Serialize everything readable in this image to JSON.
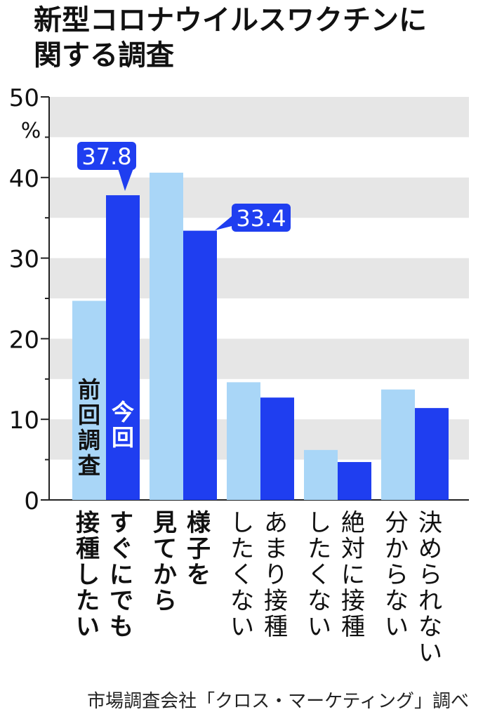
{
  "title_line1": "新型コロナウイルスワクチンに",
  "title_line2": "関する調査",
  "source": "市場調査会社「クロス・マーケティング」調べ",
  "colors": {
    "previous": "#a9d6f7",
    "current": "#1f3ef0",
    "band": "#e6e6e6",
    "axis": "#222222",
    "text": "#111111"
  },
  "chart_data": {
    "type": "bar",
    "y_unit": "%",
    "ylim": [
      0,
      50
    ],
    "y_ticks": [
      0,
      10,
      20,
      30,
      40,
      50
    ],
    "categories": [
      "すぐにでも接種したい",
      "様子を見てから",
      "あまり接種したくない",
      "絶対に接種したくない",
      "決められない分からない"
    ],
    "category_label_columns": [
      [
        "すぐにでも",
        "接種したい"
      ],
      [
        "様子を",
        "見てから"
      ],
      [
        "あまり接種",
        "したくない"
      ],
      [
        "絶対に接種",
        "したくない"
      ],
      [
        "決められない",
        "分からない"
      ]
    ],
    "category_bold": [
      true,
      true,
      false,
      false,
      false
    ],
    "series": [
      {
        "name": "前回調査",
        "values": [
          24.7,
          40.6,
          14.6,
          6.2,
          13.7
        ]
      },
      {
        "name": "今回",
        "values": [
          37.8,
          33.4,
          12.7,
          4.7,
          11.4
        ]
      }
    ],
    "callouts": [
      {
        "series": 1,
        "category": 0,
        "text": "37.8"
      },
      {
        "series": 1,
        "category": 1,
        "text": "33.4"
      }
    ]
  }
}
